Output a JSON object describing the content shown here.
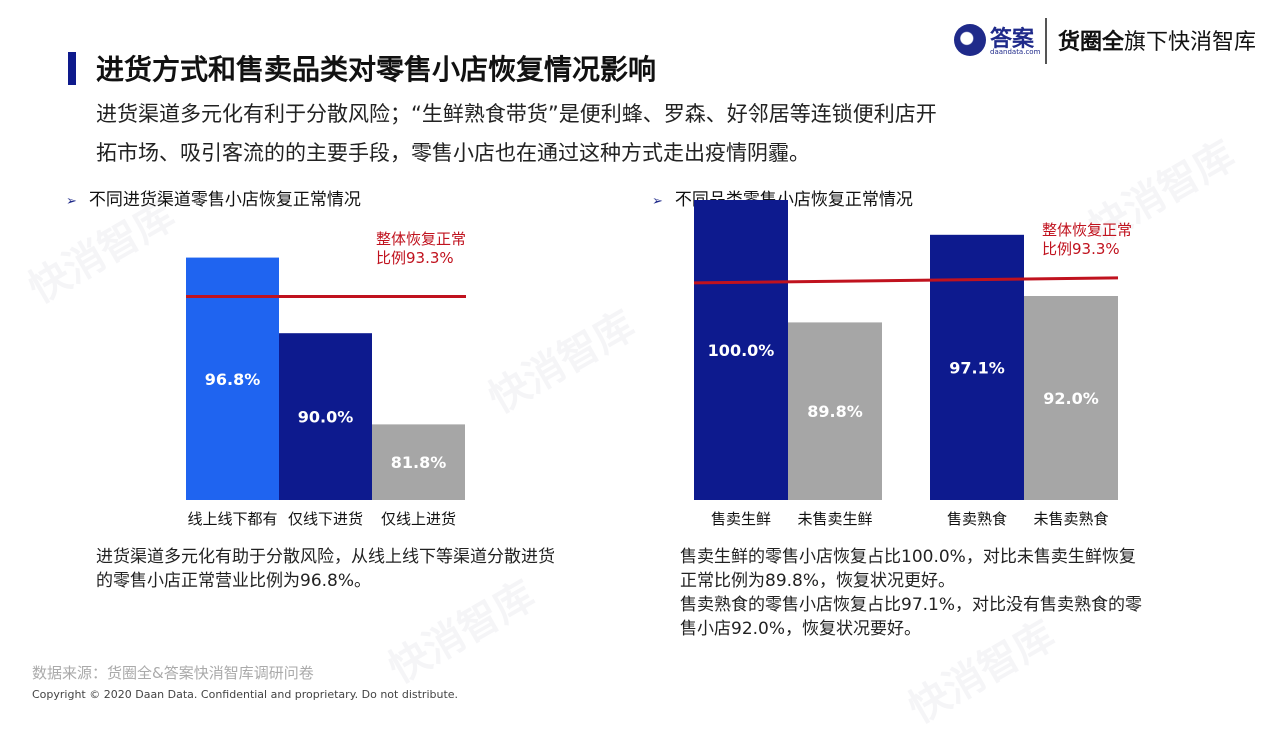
{
  "header": {
    "title": "进货方式和售卖品类对零售小店恢复情况影响",
    "subtitle_line1": "进货渠道多元化有利于分散风险；“生鲜熟食带货”是便利蜂、罗森、好邻居等连锁便利店开",
    "subtitle_line2": "拓市场、吸引客流的的主要手段，零售小店也在通过这种方式走出疫情阴霾。"
  },
  "logo": {
    "brand1": "答案",
    "brand1_small": "daandata.com",
    "brand2_bold": "货圈全",
    "brand2_rest": "旗下快消智库"
  },
  "watermark": "快消智库",
  "colors": {
    "bright_blue": "#1f64f0",
    "navy": "#0d1a8e",
    "gray": "#a6a6a6",
    "red_line": "#c0121e"
  },
  "left_section": {
    "heading": "不同进货渠道零售小店恢复正常情况",
    "note": "进货渠道多元化有助于分散风险，从线上线下等渠道分散进货的零售小店正常营业比例为96.8%。"
  },
  "right_section": {
    "heading": "不同品类零售小店恢复正常情况",
    "note_line1": "售卖生鲜的零售小店恢复占比100.0%，对比未售卖生鲜恢复正常比例为89.8%，恢复状况更好。",
    "note_line2": "售卖熟食的零售小店恢复占比97.1%，对比没有售卖熟食的零售小店92.0%，恢复状况要好。"
  },
  "chart_data": [
    {
      "type": "bar",
      "categories": [
        "线上线下都有",
        "仅线下进货",
        "仅线上进货"
      ],
      "values": [
        96.8,
        90.0,
        81.8
      ],
      "value_labels": [
        "96.8%",
        "90.0%",
        "81.8%"
      ],
      "colors": [
        "#1f64f0",
        "#0d1a8e",
        "#a6a6a6"
      ],
      "reference_line": {
        "value": 93.3,
        "label_line1": "整体恢复正常",
        "label_line2": "比例93.3%"
      },
      "ylim": [
        75,
        100
      ]
    },
    {
      "type": "bar",
      "categories": [
        "售卖生鲜",
        "未售卖生鲜",
        "售卖熟食",
        "未售卖熟食"
      ],
      "values": [
        100.0,
        89.8,
        97.1,
        92.0
      ],
      "value_labels": [
        "100.0%",
        "89.8%",
        "97.1%",
        "92.0%"
      ],
      "colors": [
        "#0d1a8e",
        "#a6a6a6",
        "#0d1a8e",
        "#a6a6a6"
      ],
      "reference_line": {
        "value": 93.3,
        "label_line1": "整体恢复正常",
        "label_line2": "比例93.3%"
      },
      "ylim": [
        75,
        100
      ]
    }
  ],
  "footer": {
    "source": "数据来源：货圈全&答案快消智库调研问卷",
    "copyright": "Copyright © 2020 Daan Data. Confidential and proprietary. Do not distribute."
  }
}
